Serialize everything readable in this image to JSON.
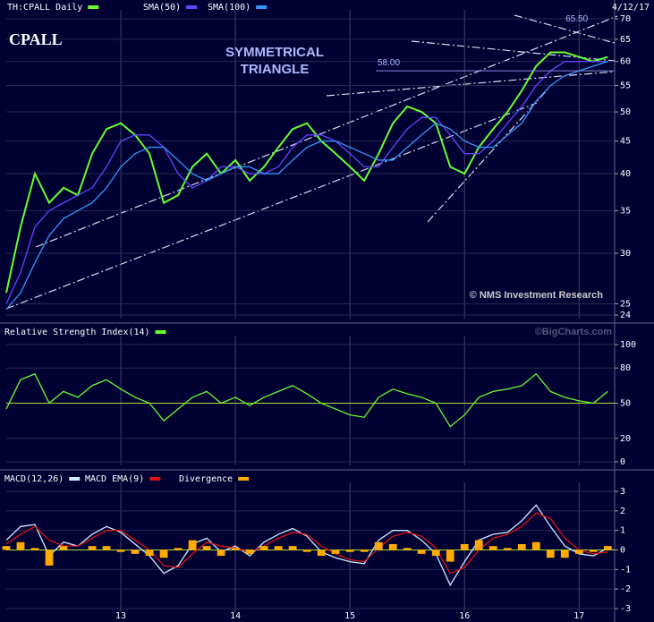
{
  "chart_data": [
    {
      "type": "line",
      "log_scale": true,
      "date": "4/12/17",
      "logo": "CPALL",
      "annotation_lines": [
        "SYMMETRICAL",
        "TRIANGLE"
      ],
      "hline": {
        "value": 58,
        "label": "58.00"
      },
      "peak": {
        "x": 16.98,
        "value": 65.5,
        "label": "65.50"
      },
      "credit": "© NMS Investment Research",
      "xlim": [
        12.0,
        17.31
      ],
      "x": [
        12.0,
        12.125,
        12.25,
        12.375,
        12.5,
        12.625,
        12.75,
        12.875,
        13.0,
        13.125,
        13.25,
        13.375,
        13.5,
        13.625,
        13.75,
        13.875,
        14.0,
        14.125,
        14.25,
        14.375,
        14.5,
        14.625,
        14.75,
        14.875,
        15.0,
        15.125,
        15.25,
        15.375,
        15.5,
        15.625,
        15.75,
        15.875,
        16.0,
        16.125,
        16.25,
        16.375,
        16.5,
        16.625,
        16.75,
        16.875,
        17.0,
        17.125,
        17.25
      ],
      "ylim": [
        24,
        70
      ],
      "yticks": [
        24,
        25,
        30,
        35,
        40,
        45,
        50,
        55,
        60,
        65,
        70
      ],
      "series": [
        {
          "name": "TH:CPALL Daily",
          "color": "#66ff33",
          "values": [
            26,
            33,
            40,
            36,
            38,
            37,
            43,
            47,
            48,
            46,
            43,
            36,
            37,
            41,
            43,
            40,
            42,
            39,
            41,
            44,
            47,
            48,
            45,
            43,
            41,
            39,
            43,
            48,
            51,
            50,
            48,
            41,
            40,
            44,
            47,
            50,
            54,
            59,
            62,
            62,
            61,
            60,
            61
          ]
        },
        {
          "name": "SMA(50)",
          "color": "#6644ff",
          "values": [
            25,
            28,
            33,
            35,
            36,
            37,
            38,
            41,
            45,
            46,
            46,
            44,
            40,
            38,
            39,
            41,
            41,
            40,
            40,
            41,
            44,
            46,
            46,
            45,
            43,
            41,
            41,
            44,
            47,
            49,
            49,
            46,
            43,
            43,
            45,
            48,
            51,
            55,
            58,
            60,
            60,
            60,
            60
          ]
        },
        {
          "name": "SMA(100)",
          "color": "#3399ff",
          "values": [
            24.5,
            26,
            29,
            32,
            34,
            35,
            36,
            38,
            41,
            43,
            44,
            44,
            42,
            40,
            39,
            40,
            41,
            41,
            40,
            40,
            42,
            44,
            45,
            45,
            44,
            43,
            42,
            42,
            44,
            46,
            48,
            47,
            45,
            44,
            44,
            46,
            48,
            52,
            55,
            57,
            58,
            59,
            60
          ]
        }
      ]
    },
    {
      "type": "line",
      "credit": "©BigCharts.com",
      "ylim": [
        0,
        100
      ],
      "yticks": [
        0,
        20,
        50,
        80,
        100
      ],
      "reference_line": 50,
      "series": [
        {
          "name": "Relative Strength Index(14)",
          "color": "#66ff33",
          "values": [
            45,
            70,
            75,
            50,
            60,
            55,
            65,
            70,
            62,
            55,
            50,
            35,
            45,
            55,
            60,
            50,
            55,
            48,
            55,
            60,
            65,
            58,
            50,
            45,
            40,
            38,
            55,
            62,
            58,
            55,
            50,
            30,
            40,
            55,
            60,
            62,
            65,
            75,
            60,
            55,
            52,
            50,
            60
          ]
        }
      ]
    },
    {
      "type": "line",
      "ylim": [
        -3,
        3
      ],
      "yticks": [
        -3,
        -2,
        -1,
        0,
        1,
        2,
        3
      ],
      "reference_line": 0,
      "xticks": [
        13,
        14,
        15,
        16,
        17
      ],
      "series": [
        {
          "name": "MACD(12,26)",
          "color": "#cceeff",
          "values": [
            0.5,
            1.2,
            1.3,
            -0.3,
            0.4,
            0.2,
            0.8,
            1.2,
            0.9,
            0.3,
            -0.3,
            -1.2,
            -0.8,
            0.3,
            0.6,
            -0.1,
            0.2,
            -0.3,
            0.4,
            0.8,
            1.1,
            0.7,
            -0.1,
            -0.4,
            -0.6,
            -0.7,
            0.5,
            1.0,
            1.0,
            0.5,
            -0.2,
            -1.8,
            -0.6,
            0.5,
            0.8,
            0.9,
            1.5,
            2.3,
            1.2,
            0.2,
            -0.2,
            -0.3,
            0.1
          ]
        },
        {
          "name": "MACD EMA(9)",
          "color": "#dd1111",
          "values": [
            0.3,
            0.8,
            1.2,
            0.5,
            0.2,
            0.2,
            0.6,
            1.0,
            1.0,
            0.5,
            0.0,
            -0.8,
            -0.9,
            -0.2,
            0.4,
            0.2,
            0.1,
            -0.1,
            0.2,
            0.6,
            0.9,
            0.8,
            0.2,
            -0.2,
            -0.5,
            -0.6,
            0.1,
            0.7,
            0.9,
            0.7,
            0.1,
            -1.2,
            -0.9,
            0.0,
            0.6,
            0.8,
            1.2,
            1.9,
            1.6,
            0.6,
            0.0,
            -0.2,
            -0.1
          ]
        },
        {
          "name": "Divergence",
          "type": "bar",
          "color": "#ffaa00",
          "values": [
            0.2,
            0.4,
            0.1,
            -0.8,
            0.2,
            0.0,
            0.2,
            0.2,
            -0.1,
            -0.2,
            -0.3,
            -0.4,
            0.1,
            0.5,
            0.2,
            -0.3,
            0.1,
            -0.2,
            0.2,
            0.2,
            0.2,
            -0.1,
            -0.3,
            -0.2,
            -0.1,
            -0.1,
            0.4,
            0.3,
            0.1,
            -0.2,
            -0.3,
            -0.6,
            0.3,
            0.5,
            0.2,
            0.1,
            0.3,
            0.4,
            -0.4,
            -0.4,
            -0.2,
            -0.1,
            0.2
          ]
        }
      ]
    }
  ]
}
